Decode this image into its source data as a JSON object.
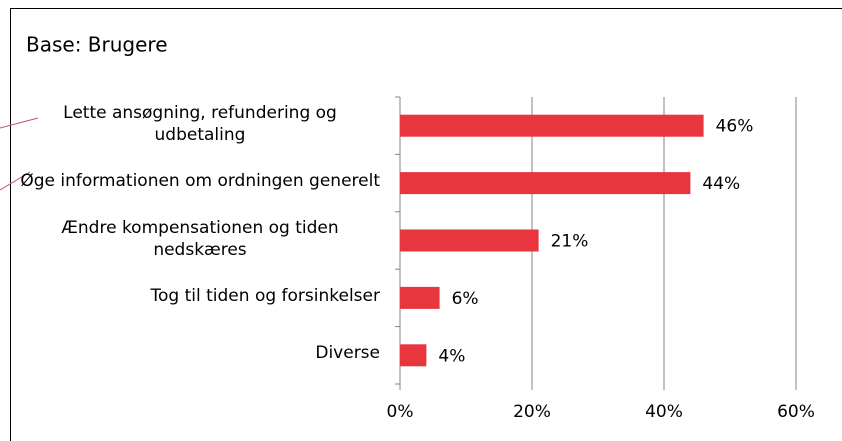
{
  "chart_data": {
    "type": "bar",
    "orientation": "horizontal",
    "title": "Base: Brugere",
    "categories": [
      "Lette ansøgning, refundering og udbetaling",
      "Øge informationen om ordningen generelt",
      "Ændre kompensationen og tiden nedskæres",
      "Tog til tiden og forsinkelser",
      "Diverse"
    ],
    "values": [
      46,
      44,
      21,
      6,
      4
    ],
    "value_labels": [
      "46%",
      "44%",
      "21%",
      "6%",
      "4%"
    ],
    "color": "#e8363f",
    "xlim": [
      0,
      60
    ],
    "xticks": [
      {
        "value": 0,
        "label": "0%"
      },
      {
        "value": 20,
        "label": "20%"
      },
      {
        "value": 40,
        "label": "40%"
      },
      {
        "value": 60,
        "label": "60%"
      }
    ],
    "grid": true
  }
}
